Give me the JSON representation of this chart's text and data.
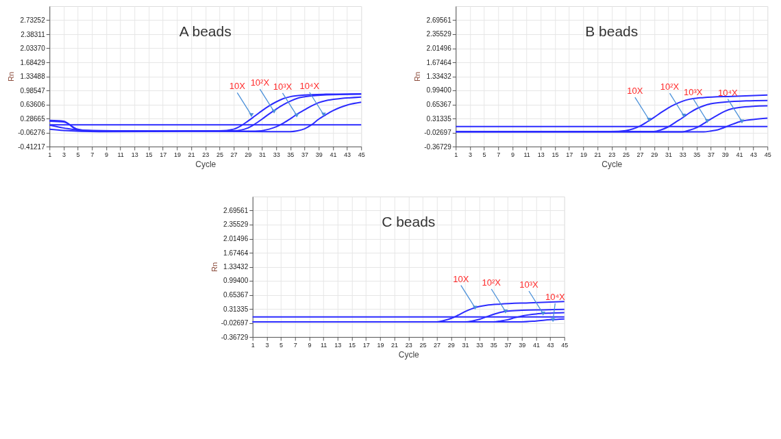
{
  "chart_data": [
    {
      "type": "line",
      "title": "A beads",
      "xlabel": "Cycle",
      "ylabel": "Rn",
      "xlim": [
        1,
        45
      ],
      "xticks": [
        1,
        3,
        5,
        7,
        9,
        11,
        13,
        15,
        17,
        19,
        21,
        23,
        25,
        27,
        29,
        31,
        33,
        35,
        37,
        39,
        41,
        43,
        45
      ],
      "ylim": [
        -0.41217,
        3.08193
      ],
      "yticks": [
        {
          "value": -0.41217,
          "label": "-0.41217"
        },
        {
          "value": -0.06276,
          "label": "-0.06276"
        },
        {
          "value": 0.28665,
          "label": "0.28665"
        },
        {
          "value": 0.63606,
          "label": "0.63606"
        },
        {
          "value": 0.98547,
          "label": "0.98547"
        },
        {
          "value": 1.33488,
          "label": "1.33488"
        },
        {
          "value": 1.68429,
          "label": "1.68429"
        },
        {
          "value": 2.0337,
          "label": "2.03370"
        },
        {
          "value": 2.38311,
          "label": "2.38311"
        },
        {
          "value": 2.73252,
          "label": "2.73252"
        }
      ],
      "grid": true,
      "series": [
        {
          "color": "#2b2bff",
          "x": [
            1,
            3,
            5,
            7,
            15,
            25,
            27,
            28,
            29,
            30,
            31,
            32,
            33,
            34,
            35,
            37,
            40,
            45
          ],
          "values": [
            0.22,
            0.2,
            0.02,
            -0.02,
            -0.03,
            -0.02,
            0.02,
            0.1,
            0.22,
            0.35,
            0.48,
            0.6,
            0.7,
            0.78,
            0.83,
            0.87,
            0.89,
            0.9
          ]
        },
        {
          "color": "#2b2bff",
          "x": [
            1,
            3,
            8,
            20,
            27,
            29,
            30,
            31,
            32,
            33,
            34,
            35,
            36,
            38,
            41,
            45
          ],
          "values": [
            0.02,
            -0.01,
            -0.04,
            -0.03,
            -0.02,
            0.05,
            0.15,
            0.27,
            0.4,
            0.52,
            0.63,
            0.72,
            0.79,
            0.85,
            0.88,
            0.89
          ]
        },
        {
          "color": "#2b2bff",
          "x": [
            1,
            3,
            5,
            10,
            20,
            30,
            32,
            33,
            34,
            35,
            36,
            37,
            38,
            39,
            40,
            42,
            45
          ],
          "values": [
            0.24,
            0.22,
            0.0,
            -0.02,
            -0.03,
            -0.03,
            0.02,
            0.08,
            0.17,
            0.28,
            0.4,
            0.5,
            0.6,
            0.68,
            0.73,
            0.78,
            0.82
          ]
        },
        {
          "color": "#2b2bff",
          "x": [
            1,
            3,
            6,
            20,
            35,
            36,
            37,
            38,
            39,
            40,
            41,
            42,
            43,
            45
          ],
          "values": [
            0.12,
            0.05,
            -0.02,
            -0.03,
            -0.04,
            -0.02,
            0.03,
            0.13,
            0.27,
            0.38,
            0.48,
            0.56,
            0.62,
            0.69
          ]
        },
        {
          "color": "#2b2bff",
          "x": [
            1,
            45
          ],
          "values": [
            0.13,
            0.13
          ]
        }
      ],
      "annotations": [
        {
          "text": "10X",
          "x": 29.5,
          "y": 0.37
        },
        {
          "text": "10²X",
          "x": 32.7,
          "y": 0.46
        },
        {
          "text": "10³X",
          "x": 35.9,
          "y": 0.36
        },
        {
          "text": "10⁴X",
          "x": 39.7,
          "y": 0.38
        }
      ]
    },
    {
      "type": "line",
      "title": "B beads",
      "xlabel": "Cycle",
      "ylabel": "Rn",
      "xlim": [
        1,
        45
      ],
      "xticks": [
        1,
        3,
        5,
        7,
        9,
        11,
        13,
        15,
        17,
        19,
        21,
        23,
        25,
        27,
        29,
        31,
        33,
        35,
        37,
        39,
        41,
        43,
        45
      ],
      "ylim": [
        -0.36729,
        3.03593
      ],
      "yticks": [
        {
          "value": -0.36729,
          "label": "-0.36729"
        },
        {
          "value": -0.02697,
          "label": "-0.02697"
        },
        {
          "value": 0.31335,
          "label": "0.31335"
        },
        {
          "value": 0.65367,
          "label": "0.65367"
        },
        {
          "value": 0.994,
          "label": "0.99400"
        },
        {
          "value": 1.33432,
          "label": "1.33432"
        },
        {
          "value": 1.67464,
          "label": "1.67464"
        },
        {
          "value": 2.01496,
          "label": "2.01496"
        },
        {
          "value": 2.35529,
          "label": "2.35529"
        },
        {
          "value": 2.69561,
          "label": "2.69561"
        }
      ],
      "grid": true,
      "series": [
        {
          "color": "#2b2bff",
          "x": [
            1,
            23,
            25,
            26,
            27,
            28,
            29,
            30,
            31,
            32,
            33,
            34,
            36,
            40,
            45
          ],
          "values": [
            0.0,
            0.0,
            0.02,
            0.06,
            0.13,
            0.23,
            0.34,
            0.46,
            0.57,
            0.66,
            0.73,
            0.78,
            0.82,
            0.85,
            0.88
          ]
        },
        {
          "color": "#2b2bff",
          "x": [
            1,
            29,
            30,
            31,
            32,
            33,
            34,
            35,
            36,
            37,
            39,
            42,
            45
          ],
          "values": [
            0.0,
            0.0,
            0.04,
            0.11,
            0.22,
            0.33,
            0.45,
            0.55,
            0.62,
            0.67,
            0.71,
            0.74,
            0.75
          ]
        },
        {
          "color": "#2b2bff",
          "x": [
            1,
            33,
            34,
            35,
            36,
            37,
            38,
            39,
            40,
            41,
            43,
            45
          ],
          "values": [
            -0.01,
            -0.01,
            0.03,
            0.09,
            0.19,
            0.3,
            0.4,
            0.49,
            0.55,
            0.58,
            0.61,
            0.62
          ]
        },
        {
          "color": "#2b2bff",
          "x": [
            1,
            36,
            37,
            38,
            39,
            40,
            41,
            42,
            43,
            45
          ],
          "values": [
            -0.01,
            -0.01,
            0.01,
            0.04,
            0.1,
            0.17,
            0.23,
            0.27,
            0.29,
            0.32
          ]
        },
        {
          "color": "#2b2bff",
          "x": [
            1,
            45
          ],
          "values": [
            0.12,
            0.12
          ]
        }
      ],
      "annotations": [
        {
          "text": "10X",
          "x": 28.3,
          "y": 0.28
        },
        {
          "text": "10²X",
          "x": 33.2,
          "y": 0.38
        },
        {
          "text": "10³X",
          "x": 36.5,
          "y": 0.25
        },
        {
          "text": "10⁴X",
          "x": 41.4,
          "y": 0.24
        }
      ]
    },
    {
      "type": "line",
      "title": "C beads",
      "xlabel": "Cycle",
      "ylabel": "Rn",
      "xlim": [
        1,
        45
      ],
      "xticks": [
        1,
        3,
        5,
        7,
        9,
        11,
        13,
        15,
        17,
        19,
        21,
        23,
        25,
        27,
        29,
        31,
        33,
        35,
        37,
        39,
        41,
        43,
        45
      ],
      "ylim": [
        -0.36729,
        3.03593
      ],
      "yticks": [
        {
          "value": -0.36729,
          "label": "-0.36729"
        },
        {
          "value": -0.02697,
          "label": "-0.02697"
        },
        {
          "value": 0.31335,
          "label": "0.31335"
        },
        {
          "value": 0.65367,
          "label": "0.65367"
        },
        {
          "value": 0.994,
          "label": "0.99400"
        },
        {
          "value": 1.33432,
          "label": "1.33432"
        },
        {
          "value": 1.67464,
          "label": "1.67464"
        },
        {
          "value": 2.01496,
          "label": "2.01496"
        },
        {
          "value": 2.35529,
          "label": "2.35529"
        },
        {
          "value": 2.69561,
          "label": "2.69561"
        }
      ],
      "grid": true,
      "series": [
        {
          "color": "#2b2bff",
          "x": [
            1,
            27,
            28,
            29,
            30,
            31,
            32,
            33,
            34,
            36,
            40,
            45
          ],
          "values": [
            0.0,
            0.0,
            0.03,
            0.08,
            0.16,
            0.25,
            0.32,
            0.37,
            0.4,
            0.43,
            0.46,
            0.49
          ]
        },
        {
          "color": "#2b2bff",
          "x": [
            1,
            31,
            32,
            33,
            34,
            35,
            36,
            37,
            39,
            42,
            45
          ],
          "values": [
            0.0,
            0.0,
            0.02,
            0.06,
            0.12,
            0.18,
            0.23,
            0.26,
            0.28,
            0.29,
            0.3
          ]
        },
        {
          "color": "#2b2bff",
          "x": [
            1,
            35,
            36,
            37,
            38,
            39,
            40,
            41,
            43,
            45
          ],
          "values": [
            0.0,
            0.0,
            0.02,
            0.05,
            0.1,
            0.14,
            0.17,
            0.19,
            0.21,
            0.22
          ]
        },
        {
          "color": "#2b2bff",
          "x": [
            1,
            39,
            41,
            43,
            45
          ],
          "values": [
            0.0,
            0.0,
            0.02,
            0.05,
            0.07
          ]
        },
        {
          "color": "#2b2bff",
          "x": [
            1,
            45
          ],
          "values": [
            0.12,
            0.12
          ]
        }
      ],
      "annotations": [
        {
          "text": "10X",
          "x": 32.4,
          "y": 0.34
        },
        {
          "text": "10²X",
          "x": 36.7,
          "y": 0.25
        },
        {
          "text": "10³X",
          "x": 42.0,
          "y": 0.2
        },
        {
          "text": "10⁴X",
          "x": 43.4,
          "y": 0.04
        }
      ]
    }
  ]
}
